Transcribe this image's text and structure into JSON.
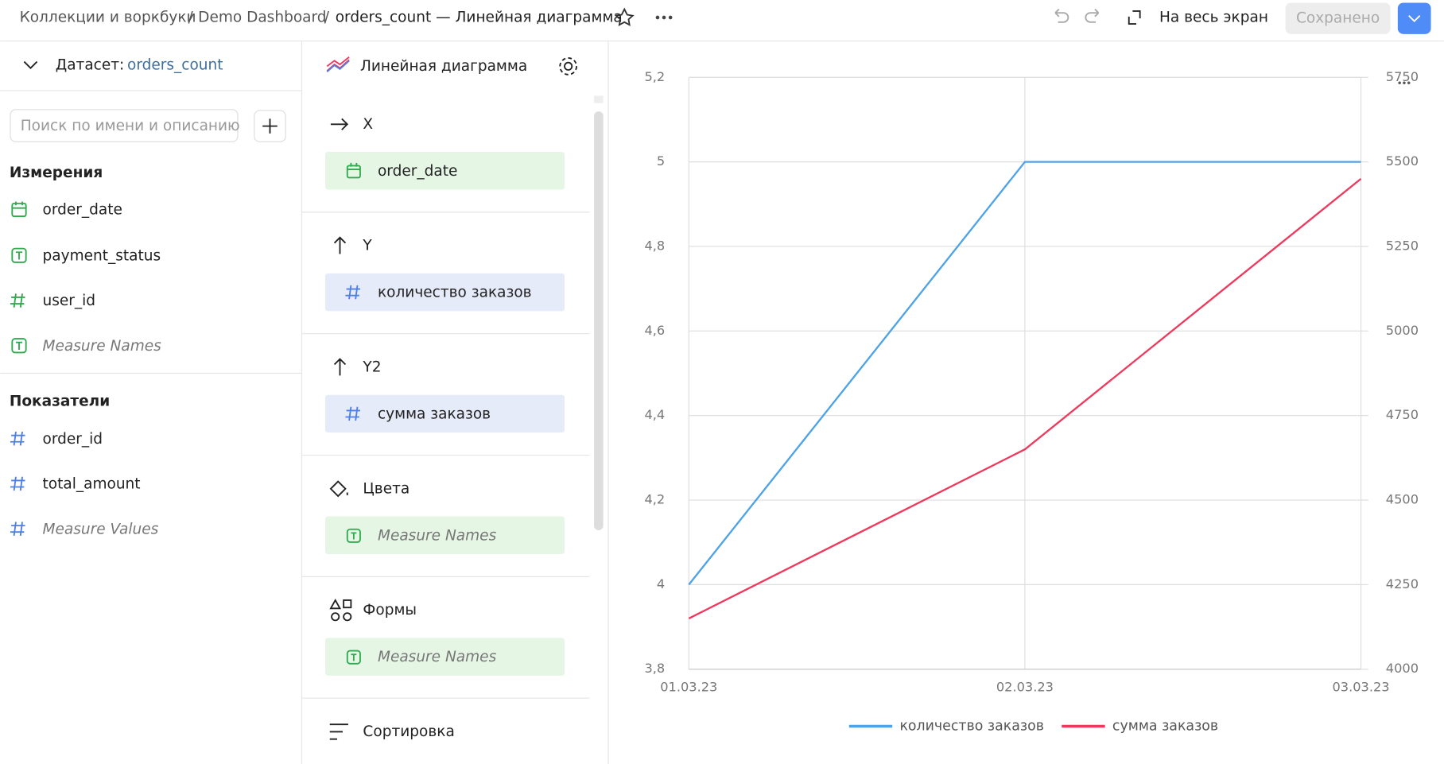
{
  "header": {
    "breadcrumbs": [
      "Коллекции и воркбуки",
      "Demo Dashboard"
    ],
    "separator": "/",
    "title": "orders_count — Линейная диаграмма",
    "fullscreen": "На весь экран",
    "saved": "Сохранено"
  },
  "dataset": {
    "label": "Датасет:",
    "name": "orders_count",
    "search_placeholder": "Поиск по имени и описанию"
  },
  "dimensions": {
    "title": "Измерения",
    "items": [
      "order_date",
      "payment_status",
      "user_id",
      "Measure Names"
    ]
  },
  "measures": {
    "title": "Показатели",
    "items": [
      "order_id",
      "total_amount",
      "Measure Values"
    ]
  },
  "visualization": {
    "type_label": "Линейная диаграмма",
    "sections": [
      {
        "title": "X",
        "field": "order_date"
      },
      {
        "title": "Y",
        "field": "количество заказов"
      },
      {
        "title": "Y2",
        "field": "сумма заказов"
      },
      {
        "title": "Цвета",
        "field": "Measure Names"
      },
      {
        "title": "Формы",
        "field": "Measure Names"
      },
      {
        "title": "Сортировка"
      }
    ]
  },
  "chart_data": {
    "type": "line",
    "x": [
      "01.03.23",
      "02.03.23",
      "03.03.23"
    ],
    "series": [
      {
        "name": "количество заказов",
        "color": "#4da2e8",
        "values": [
          4,
          5,
          5
        ]
      },
      {
        "name": "сумма заказов",
        "color": "#f0375c",
        "axis": "y2",
        "values": [
          4150,
          4650,
          5450
        ]
      }
    ],
    "ylim": [
      3.8,
      5.2
    ],
    "yticks": [
      {
        "value": 3.8,
        "label": "3,8"
      },
      4,
      {
        "value": 4.2,
        "label": "4,2"
      },
      {
        "value": 4.4,
        "label": "4,4"
      },
      {
        "value": 4.6,
        "label": "4,6"
      },
      {
        "value": 4.8,
        "label": "4,8"
      },
      5,
      {
        "value": 5.2,
        "label": "5,2"
      }
    ],
    "y2lim": [
      4000,
      5750
    ],
    "y2ticks": [
      4000,
      4250,
      4500,
      4750,
      5000,
      5250,
      5500,
      5750
    ],
    "grid": true,
    "legend": "bottom"
  }
}
